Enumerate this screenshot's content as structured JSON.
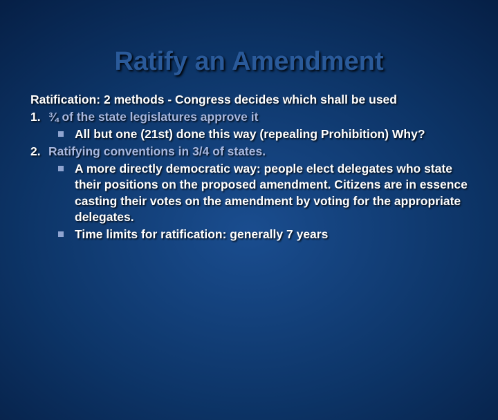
{
  "title": "Ratify an Amendment",
  "intro": "Ratification:  2 methods - Congress decides which shall be used",
  "items": [
    {
      "num": "1.",
      "method": "¾  of the state legislatures approve it",
      "subs": [
        "All but one (21st) done this way (repealing Prohibition) Why?"
      ]
    },
    {
      "num": "2.",
      "method": "Ratifying conventions in 3/4 of states.",
      "subs": [
        "A more directly democratic way:  people elect delegates who state their positions on the proposed amendment.  Citizens are in essence casting their votes on the amendment by voting for the appropriate delegates.",
        "Time limits for ratification:  generally 7 years"
      ]
    }
  ],
  "colors": {
    "title": "#2a5a9a",
    "body": "#ffffff",
    "method": "#a8b8e0",
    "bullet": "#8fa4d0"
  }
}
